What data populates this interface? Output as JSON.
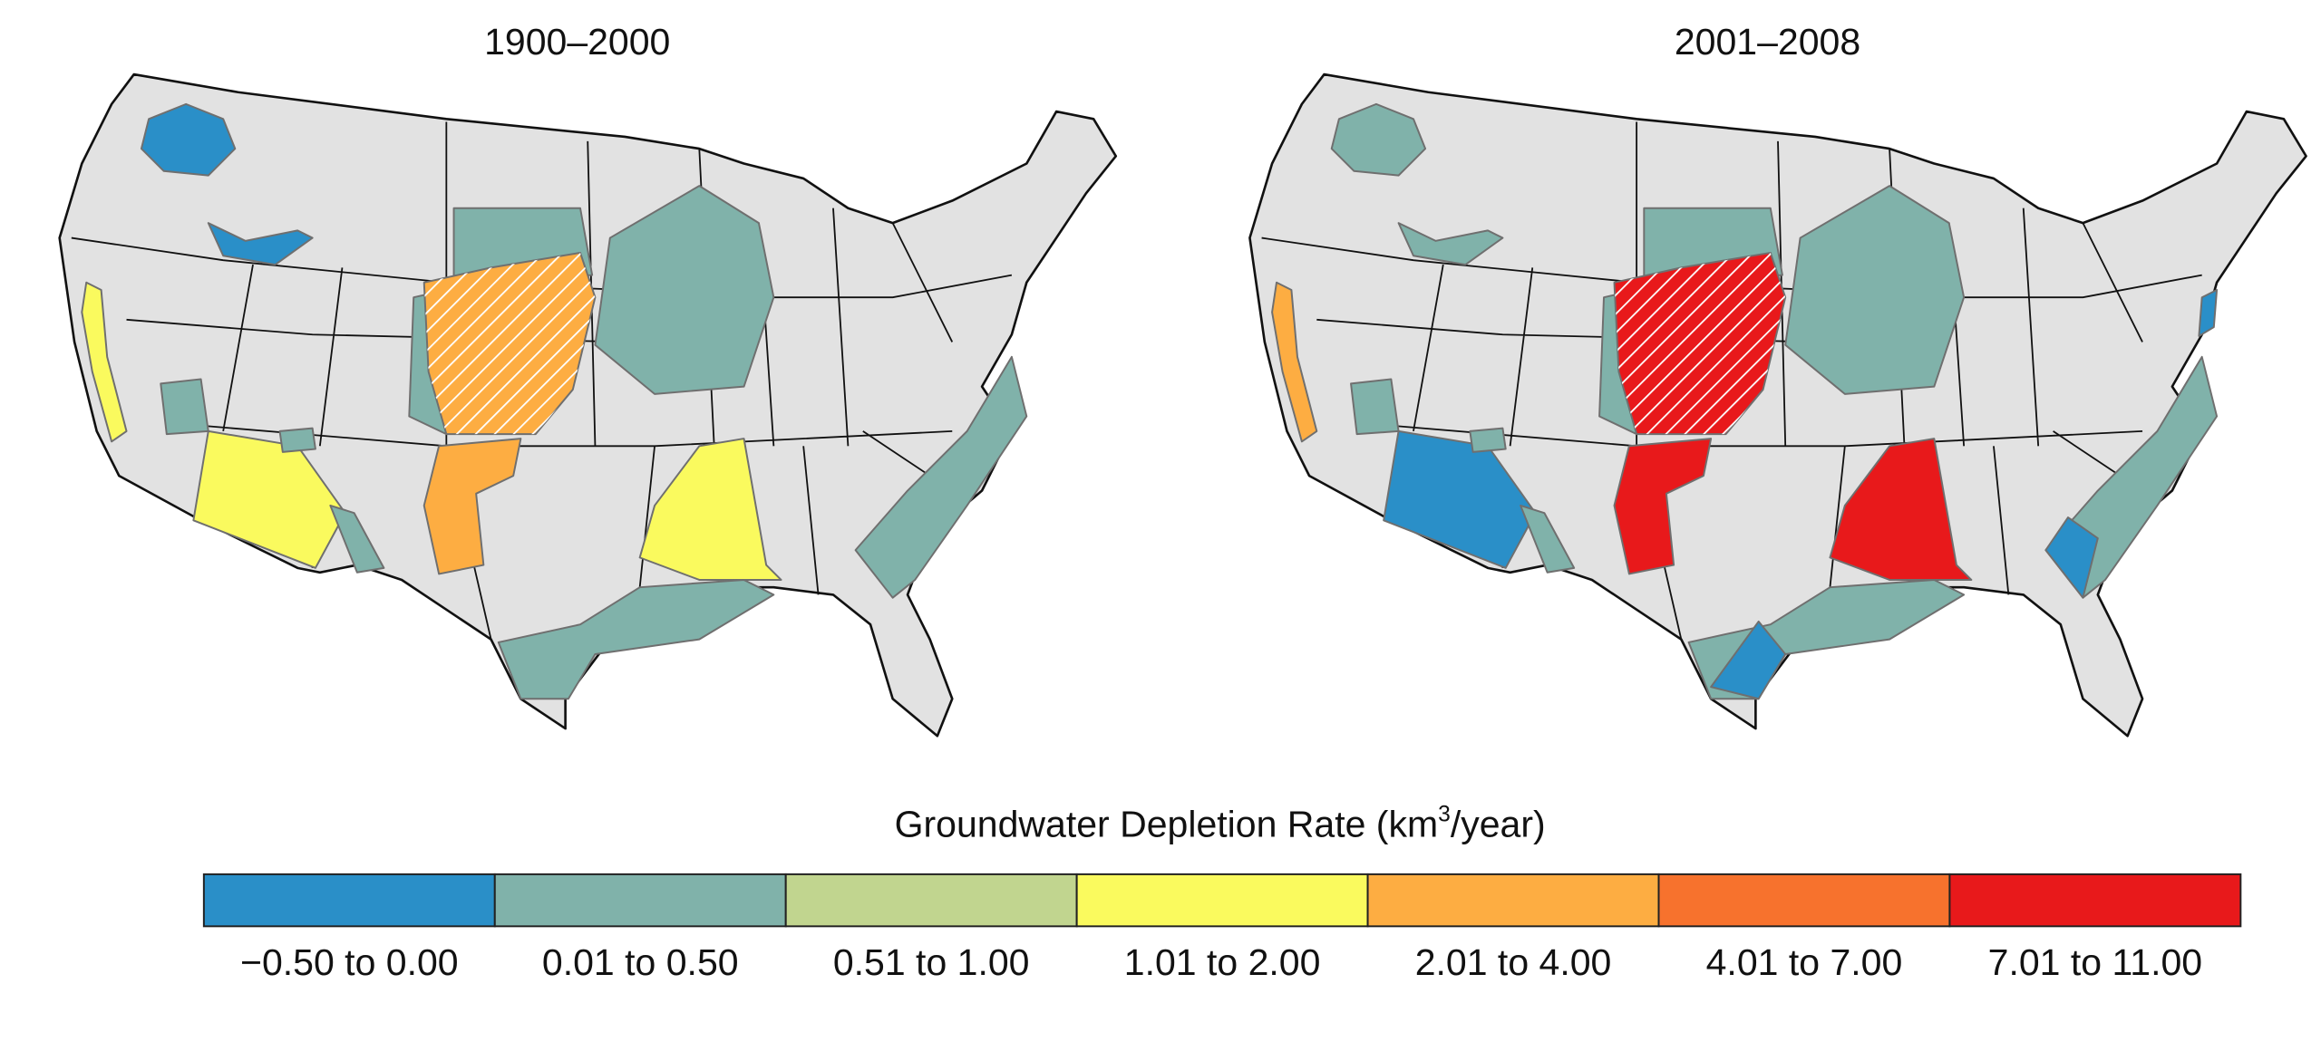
{
  "maps": [
    {
      "title": "1900–2000"
    },
    {
      "title": "2001–2008"
    }
  ],
  "legend": {
    "title": {
      "text": "Groundwater Depletion Rate (km",
      "superscript": "3",
      "suffix": "/year)"
    },
    "items": [
      {
        "label": "−0.50 to 0.00",
        "color": "#2a8fc8"
      },
      {
        "label": "0.01 to 0.50",
        "color": "#80b2aa"
      },
      {
        "label": "0.51 to 1.00",
        "color": "#c1d58f"
      },
      {
        "label": "1.01 to 2.00",
        "color": "#fafa5e"
      },
      {
        "label": "2.01 to 4.00",
        "color": "#fdad42"
      },
      {
        "label": "4.01 to 7.00",
        "color": "#f7722d"
      },
      {
        "label": "7.01 to 11.00",
        "color": "#e8191b"
      }
    ]
  }
}
